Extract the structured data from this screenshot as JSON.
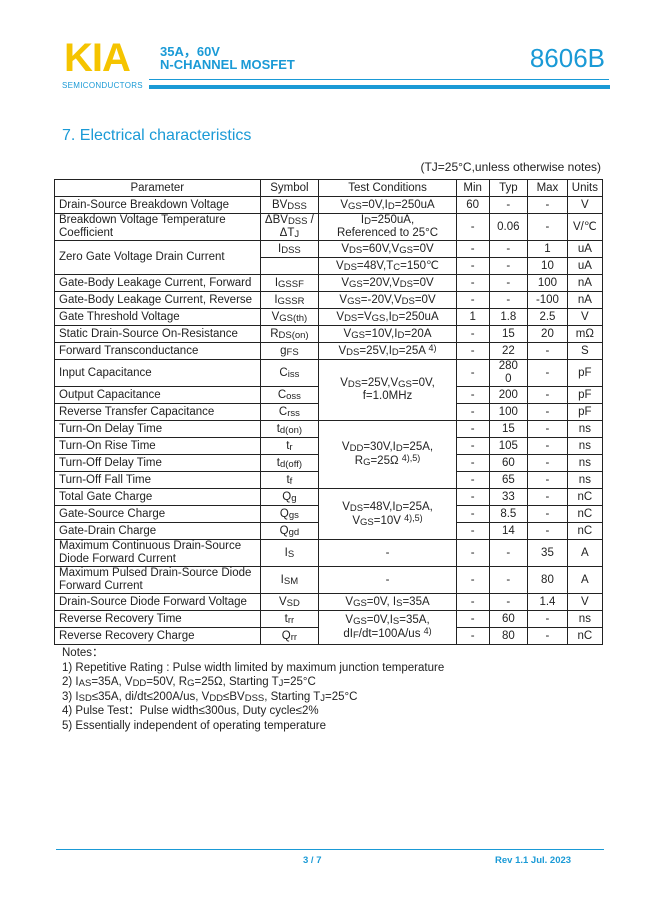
{
  "header": {
    "logo": "KIA",
    "logo_sub": "SEMICONDUCTORS",
    "rating": "35A，60V",
    "type": "N-CHANNEL MOSFET",
    "part_number": "8606B",
    "brand_color": "#1a9ad6",
    "logo_color": "#f5c400"
  },
  "section_title": "7.  Electrical characteristics",
  "conditions_note": "(TJ=25°C,unless otherwise notes)",
  "table": {
    "columns": [
      "Parameter",
      "Symbol",
      "Test Conditions",
      "Min",
      "Typ",
      "Max",
      "Units"
    ],
    "rows": [
      [
        "Drain-Source Breakdown Voltage",
        "BV_{DSS}",
        "V_{GS}=0V,I_{D}=250uA",
        "60",
        "-",
        "-",
        "V"
      ],
      [
        "Breakdown Voltage Temperature Coefficient",
        "ΔBV_{DSS} / ΔT_{J}",
        "I_{D}=250uA, Referenced to 25°C",
        "-",
        "0.06",
        "-",
        "V/℃"
      ],
      [
        "Zero Gate Voltage Drain Current",
        "I_{DSS}",
        "V_{DS}=60V,V_{GS}=0V",
        "-",
        "-",
        "1",
        "uA"
      ],
      [
        null,
        "",
        "V_{DS}=48V,T_{C}=150℃",
        "-",
        "-",
        "10",
        "uA"
      ],
      [
        "Gate-Body Leakage Current, Forward",
        "I_{GSSF}",
        "V_{GS}=20V,V_{DS}=0V",
        "-",
        "-",
        "100",
        "nA"
      ],
      [
        "Gate-Body Leakage Current, Reverse",
        "I_{GSSR}",
        "V_{GS}=-20V,V_{DS}=0V",
        "-",
        "-",
        "-100",
        "nA"
      ],
      [
        "Gate Threshold Voltage",
        "V_{GS(th)}",
        "V_{DS}=V_{GS},I_{D}=250uA",
        "1",
        "1.8",
        "2.5",
        "V"
      ],
      [
        "Static Drain-Source On-Resistance",
        "R_{DS(on)}",
        "V_{GS}=10V,I_{D}=20A",
        "-",
        "15",
        "20",
        "mΩ"
      ],
      [
        "Forward Transconductance",
        "g_{FS}",
        "V_{DS}=25V,I_{D}=25A ^{4)}",
        "-",
        "22",
        "-",
        "S"
      ],
      [
        "Input Capacitance",
        "C_{iss}",
        "V_{DS}=25V,V_{GS}=0V, f=1.0MHz",
        "-",
        "280 0",
        "-",
        "pF"
      ],
      [
        "Output Capacitance",
        "C_{oss}",
        null,
        "-",
        "200",
        "-",
        "pF"
      ],
      [
        "Reverse Transfer Capacitance",
        "C_{rss}",
        null,
        "-",
        "100",
        "-",
        "pF"
      ],
      [
        "Turn-On Delay Time",
        "t_{d(on)}",
        "V_{DD}=30V,I_{D}=25A, R_{G}=25Ω ^{4),5)}",
        "-",
        "15",
        "-",
        "ns"
      ],
      [
        "Turn-On Rise Time",
        "t_{r}",
        null,
        "-",
        "105",
        "-",
        "ns"
      ],
      [
        "Turn-Off Delay Time",
        "t_{d(off)}",
        null,
        "-",
        "60",
        "-",
        "ns"
      ],
      [
        "Turn-Off Fall Time",
        "t_{f}",
        null,
        "-",
        "65",
        "-",
        "ns"
      ],
      [
        "Total Gate Charge",
        "Q_{g}",
        "V_{DS}=48V,I_{D}=25A, V_{GS}=10V ^{4),5)}",
        "-",
        "33",
        "-",
        "nC"
      ],
      [
        "Gate-Source Charge",
        "Q_{gs}",
        null,
        "-",
        "8.5",
        "-",
        "nC"
      ],
      [
        "Gate-Drain Charge",
        "Q_{gd}",
        null,
        "-",
        "14",
        "-",
        "nC"
      ],
      [
        "Maximum Continuous Drain-Source Diode Forward Current",
        "I_{S}",
        "-",
        "-",
        "-",
        "35",
        "A"
      ],
      [
        "Maximum Pulsed Drain-Source Diode Forward Current",
        "I_{SM}",
        "-",
        "-",
        "-",
        "80",
        "A"
      ],
      [
        "Drain-Source Diode Forward Voltage",
        "V_{SD}",
        "V_{GS}=0V, I_{S}=35A",
        "-",
        "-",
        "1.4",
        "V"
      ],
      [
        "Reverse Recovery Time",
        "t_{rr}",
        "V_{GS}=0V,I_{S}=35A, dI_{F}/dt=100A/us ^{4)}",
        "-",
        "60",
        "-",
        "ns"
      ],
      [
        "Reverse Recovery Charge",
        "Q_{rr}",
        null,
        "-",
        "80",
        "-",
        "nC"
      ]
    ]
  },
  "notes": {
    "title": "Notes：",
    "items": [
      "1) Repetitive Rating : Pulse width limited by maximum junction temperature",
      "2) I_{AS}=35A, V_{DD}=50V, R_{G}=25Ω, Starting T_{J}=25°C",
      "3) I_{SD}≤35A, di/dt≤200A/us, V_{DD}≤BV_{DSS}, Starting T_{J}=25°C",
      "4) Pulse Test：Pulse width≤300us, Duty cycle≤2%",
      "5) Essentially independent of operating temperature"
    ]
  },
  "footer": {
    "page": "3 / 7",
    "revision": "Rev 1.1 Jul. 2023"
  }
}
